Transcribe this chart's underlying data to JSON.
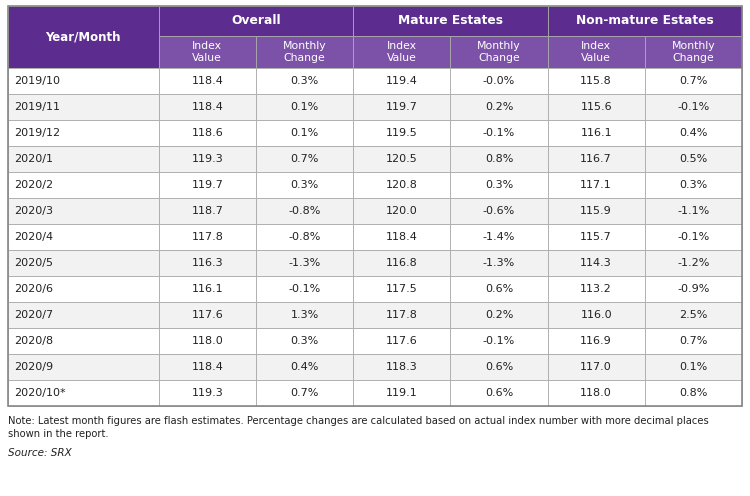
{
  "header_bg_color": "#5c2d8e",
  "subheader_bg_color": "#7b52a8",
  "header_text_color": "#ffffff",
  "row_colors": [
    "#ffffff",
    "#f2f2f2"
  ],
  "border_color": "#aaaaaa",
  "text_color": "#222222",
  "note_color": "#222222",
  "col1_header": "Year/Month",
  "group_headers": [
    "Overall",
    "Mature Estates",
    "Non-mature Estates"
  ],
  "sub_headers": [
    "Index\nValue",
    "Monthly\nChange",
    "Index\nValue",
    "Monthly\nChange",
    "Index\nValue",
    "Monthly\nChange"
  ],
  "rows": [
    [
      "2019/10",
      "118.4",
      "0.3%",
      "119.4",
      "-0.0%",
      "115.8",
      "0.7%"
    ],
    [
      "2019/11",
      "118.4",
      "0.1%",
      "119.7",
      "0.2%",
      "115.6",
      "-0.1%"
    ],
    [
      "2019/12",
      "118.6",
      "0.1%",
      "119.5",
      "-0.1%",
      "116.1",
      "0.4%"
    ],
    [
      "2020/1",
      "119.3",
      "0.7%",
      "120.5",
      "0.8%",
      "116.7",
      "0.5%"
    ],
    [
      "2020/2",
      "119.7",
      "0.3%",
      "120.8",
      "0.3%",
      "117.1",
      "0.3%"
    ],
    [
      "2020/3",
      "118.7",
      "-0.8%",
      "120.0",
      "-0.6%",
      "115.9",
      "-1.1%"
    ],
    [
      "2020/4",
      "117.8",
      "-0.8%",
      "118.4",
      "-1.4%",
      "115.7",
      "-0.1%"
    ],
    [
      "2020/5",
      "116.3",
      "-1.3%",
      "116.8",
      "-1.3%",
      "114.3",
      "-1.2%"
    ],
    [
      "2020/6",
      "116.1",
      "-0.1%",
      "117.5",
      "0.6%",
      "113.2",
      "-0.9%"
    ],
    [
      "2020/7",
      "117.6",
      "1.3%",
      "117.8",
      "0.2%",
      "116.0",
      "2.5%"
    ],
    [
      "2020/8",
      "118.0",
      "0.3%",
      "117.6",
      "-0.1%",
      "116.9",
      "0.7%"
    ],
    [
      "2020/9",
      "118.4",
      "0.4%",
      "118.3",
      "0.6%",
      "117.0",
      "0.1%"
    ],
    [
      "2020/10*",
      "119.3",
      "0.7%",
      "119.1",
      "0.6%",
      "118.0",
      "0.8%"
    ]
  ],
  "note_line1": "Note: Latest month figures are flash estimates. Percentage changes are calculated based on actual index number with more decimal places",
  "note_line2": "shown in the report.",
  "source_text": "Source: SRX",
  "fig_w": 7.5,
  "fig_h": 4.96,
  "dpi": 100
}
